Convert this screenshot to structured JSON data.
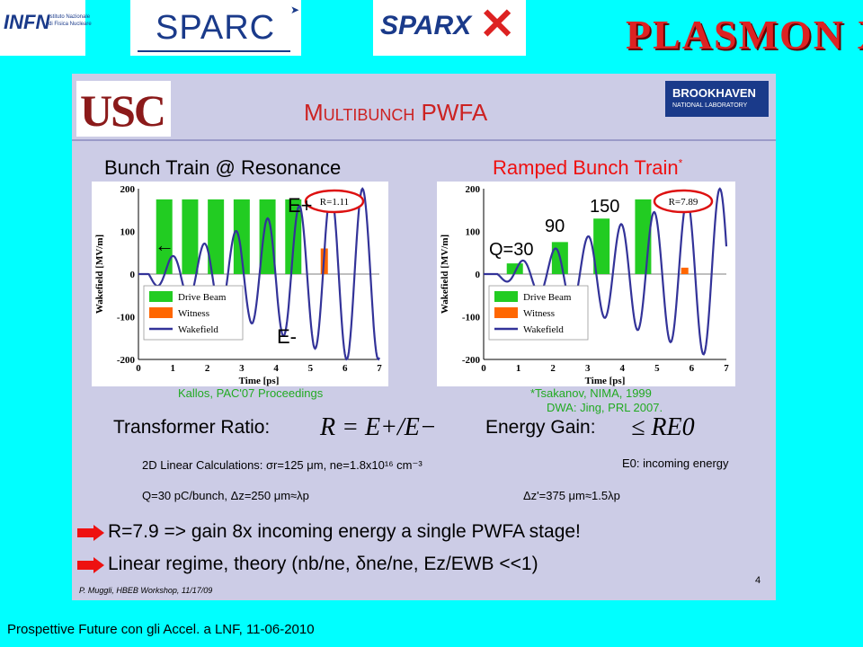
{
  "header": {
    "logos": {
      "infn_text": "INFN",
      "infn_sub1": "Istituto Nazionale",
      "infn_sub2": "di Fisica Nucleare",
      "sparc": "SPARC",
      "sparx": "SPARX",
      "plasmonx": "PLASMON X"
    }
  },
  "slide": {
    "usc_logo": "USC",
    "title": "Multibunch PWFA",
    "brookhaven": "BROOKHAVEN",
    "brookhaven_sub": "NATIONAL LABORATORY",
    "left_heading": "Bunch Train @ Resonance",
    "right_heading": "Ramped Bunch Train",
    "right_heading_mark": "*",
    "left_caption": "Kallos, PAC'07 Proceedings",
    "right_caption1": "*Tsakanov, NIMA, 1999",
    "right_caption2": "DWA: Jing, PRL 2007.",
    "transformer_label": "Transformer Ratio:",
    "transformer_formula": "R = E+/E−",
    "energy_label": "Energy Gain:",
    "energy_formula": "≤ RE0",
    "calc_line": "2D Linear Calculations: σr=125 μm, ne=1.8x10¹⁶ cm⁻³",
    "incoming_energy": "E0: incoming energy",
    "q_line": "Q=30 pC/bunch, Δz=250 μm≈λp",
    "dz_line": "Δz'=375 μm≈1.5λp",
    "bullet1": "R=7.9 => gain 8x incoming energy a single PWFA stage!",
    "bullet2": "Linear regime, theory (nb/ne, δne/ne, Ez/EWB <<1)",
    "footer_author": "P. Muggli, HBEB Workshop, 11/17/09",
    "page_number": "4"
  },
  "footer": {
    "text": "Prospettive Future con gli Accel. a LNF,  11-06-2010"
  },
  "chart_data": [
    {
      "type": "bar",
      "ylabel": "Wakefield [MV/m]",
      "xlabel": "Time [ps]",
      "xlim": [
        0,
        7
      ],
      "ylim": [
        -200,
        200
      ],
      "xticks": [
        "0",
        "1",
        "2",
        "3",
        "4",
        "5",
        "6",
        "7"
      ],
      "yticks": [
        "200",
        "100",
        "0",
        "-100",
        "-200"
      ],
      "ratio_label": "R=1.11",
      "e_plus_label": "E+",
      "e_minus_label": "E-",
      "legend": [
        "Drive Beam",
        "Witness",
        "Wakefield"
      ],
      "series": [
        {
          "name": "Drive Beam",
          "x": [
            0.75,
            1.5,
            2.25,
            3.0,
            3.75,
            4.5
          ],
          "values": [
            175,
            175,
            175,
            175,
            175,
            175
          ],
          "color": "#22cc22"
        },
        {
          "name": "Witness",
          "x": [
            5.4
          ],
          "values": [
            60
          ],
          "color": "#ff6600"
        },
        {
          "name": "Wakefield",
          "color": "#333399"
        }
      ]
    },
    {
      "type": "bar",
      "ylabel": "Wakefield [MV/m]",
      "xlabel": "Time [ps]",
      "xlim": [
        0,
        7
      ],
      "ylim": [
        -200,
        200
      ],
      "xticks": [
        "0",
        "1",
        "2",
        "3",
        "4",
        "5",
        "6",
        "7"
      ],
      "yticks": [
        "200",
        "100",
        "0",
        "-100",
        "-200"
      ],
      "ratio_label": "R=7.89",
      "bunch_labels": [
        "Q=30",
        "90",
        "150"
      ],
      "legend": [
        "Drive Beam",
        "Witness",
        "Wakefield"
      ],
      "series": [
        {
          "name": "Drive Beam",
          "x": [
            0.9,
            2.2,
            3.4,
            4.6
          ],
          "values": [
            25,
            75,
            130,
            175
          ],
          "color": "#22cc22"
        },
        {
          "name": "Witness",
          "x": [
            5.8
          ],
          "values": [
            15
          ],
          "color": "#ff6600"
        },
        {
          "name": "Wakefield",
          "color": "#333399"
        }
      ]
    }
  ]
}
